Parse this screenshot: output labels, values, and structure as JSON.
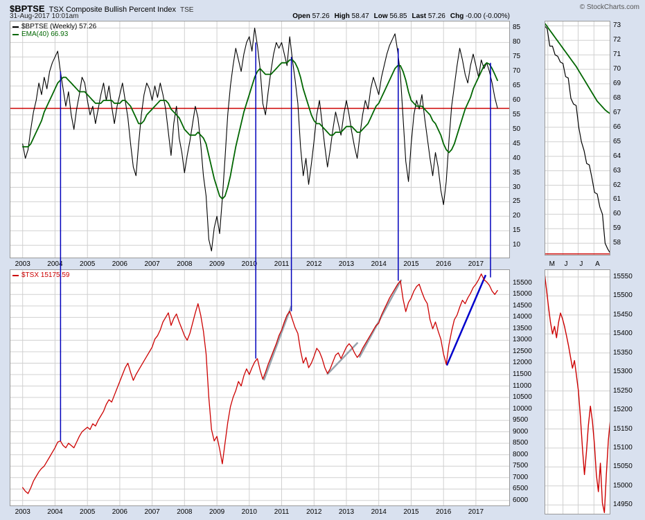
{
  "page": {
    "background": "#d9e1ef",
    "grid_color": "#d0d0d0",
    "border_color": "#999999"
  },
  "header": {
    "symbol": "$BPTSE",
    "title": "TSX Composite Bullish Percent Index",
    "exchange": "TSE",
    "copyright": "© StockCharts.com",
    "timestamp": "31-Aug-2017 10:01am",
    "quote": [
      {
        "label": "Open",
        "value": "57.26"
      },
      {
        "label": "High",
        "value": "58.47"
      },
      {
        "label": "Low",
        "value": "56.85"
      },
      {
        "label": "Last",
        "value": "57.26"
      },
      {
        "label": "Chg",
        "value": "-0.00 (-0.00%)"
      }
    ]
  },
  "annotations": {
    "color": "#0000bb",
    "vertical_lines": [
      {
        "year": 2004.17,
        "bp_value": 70,
        "tsx_value": 8600
      },
      {
        "year": 2010.2,
        "bp_value": 80,
        "tsx_value": 12200
      },
      {
        "year": 2011.3,
        "bp_value": 75,
        "tsx_value": 14270
      },
      {
        "year": 2014.6,
        "bp_value": 78,
        "tsx_value": 15600
      },
      {
        "year": 2017.45,
        "bp_value": 73,
        "tsx_value": 15750
      }
    ]
  },
  "chart_data": [
    {
      "id": "bp",
      "name": "TSX Composite Bullish Percent Index, weekly 2003-2017",
      "type": "line",
      "xlim": [
        2002.6,
        2018.05
      ],
      "ylim": [
        5.5,
        87.5
      ],
      "xgrid": [
        2003,
        2004,
        2005,
        2006,
        2007,
        2008,
        2009,
        2010,
        2011,
        2012,
        2013,
        2014,
        2015,
        2016,
        2017
      ],
      "xtick_positions": [
        2003,
        2004,
        2005,
        2006,
        2007,
        2008,
        2009,
        2010,
        2011,
        2012,
        2013,
        2014,
        2015,
        2016,
        2017
      ],
      "xtick_labels": [
        "2003",
        "2004",
        "2005",
        "2006",
        "2007",
        "2008",
        "2009",
        "2010",
        "2011",
        "2012",
        "2013",
        "2014",
        "2015",
        "2016",
        "2017"
      ],
      "xlabel_align": "center",
      "yticks": [
        85,
        80,
        75,
        70,
        65,
        60,
        55,
        50,
        45,
        40,
        35,
        30,
        25,
        20,
        15,
        10
      ],
      "hline": {
        "value": 57.26,
        "color": "#cc0000"
      },
      "legend": [
        {
          "label": "$BPTSE (Weekly) 57.26",
          "color": "#000000"
        },
        {
          "label": "EMA(40) 66.93",
          "color": "#006600"
        }
      ],
      "series": [
        {
          "name": "$BPTSE (Weekly)",
          "color": "#000000",
          "width": 1.1,
          "x_start": 2003.0,
          "x_step": 0.083333,
          "values": [
            45,
            40,
            43,
            50,
            56,
            60,
            66,
            62,
            68,
            64,
            70,
            73,
            75,
            77,
            70,
            64,
            58,
            63,
            55,
            50,
            57,
            62,
            68,
            66,
            60,
            55,
            58,
            52,
            57,
            62,
            66,
            60,
            65,
            58,
            52,
            58,
            62,
            66,
            60,
            54,
            45,
            37,
            34,
            45,
            55,
            62,
            66,
            64,
            60,
            65,
            61,
            66,
            62,
            57,
            49,
            41,
            52,
            58,
            47,
            42,
            35,
            41,
            46,
            52,
            58,
            54,
            45,
            34,
            27,
            12,
            8,
            16,
            20,
            14,
            26,
            40,
            55,
            65,
            72,
            78,
            74,
            70,
            76,
            80,
            82,
            77,
            85,
            79,
            71,
            59,
            55,
            63,
            70,
            76,
            80,
            78,
            80,
            76,
            72,
            82,
            74,
            67,
            59,
            44,
            34,
            40,
            31,
            38,
            46,
            55,
            60,
            52,
            44,
            37,
            43,
            50,
            56,
            52,
            48,
            55,
            60,
            55,
            49,
            44,
            40,
            48,
            55,
            60,
            57,
            64,
            68,
            65,
            62,
            68,
            72,
            76,
            79,
            81,
            83,
            77,
            69,
            54,
            39,
            32,
            45,
            55,
            60,
            57,
            62,
            54,
            47,
            40,
            34,
            42,
            37,
            29,
            24,
            32,
            46,
            58,
            65,
            72,
            78,
            74,
            69,
            66,
            72,
            76,
            72,
            68,
            74,
            71,
            73,
            70,
            66,
            61,
            57.3
          ]
        },
        {
          "name": "EMA(40)",
          "color": "#006600",
          "width": 1.8,
          "x_start": 2003.0,
          "x_step": 0.083333,
          "values": [
            44,
            44,
            44,
            45,
            47,
            49,
            51,
            53,
            56,
            58,
            60,
            62,
            64,
            66,
            67,
            68,
            68,
            67,
            66,
            65,
            64,
            63,
            63,
            63,
            62,
            61,
            60,
            59,
            59,
            59,
            60,
            60,
            60,
            60,
            59,
            59,
            59,
            60,
            60,
            59,
            58,
            56,
            54,
            52,
            52,
            53,
            55,
            56,
            57,
            58,
            59,
            60,
            60,
            60,
            59,
            57,
            56,
            55,
            54,
            52,
            50,
            49,
            48,
            48,
            48,
            49,
            48,
            47,
            45,
            41,
            37,
            33,
            30,
            27,
            26,
            27,
            30,
            34,
            39,
            44,
            48,
            52,
            56,
            59,
            62,
            65,
            68,
            70,
            71,
            70,
            69,
            69,
            69,
            70,
            71,
            72,
            73,
            73,
            73,
            74,
            74,
            73,
            71,
            68,
            64,
            61,
            58,
            55,
            53,
            52,
            52,
            51,
            50,
            49,
            48,
            48,
            49,
            49,
            49,
            50,
            51,
            51,
            51,
            50,
            49,
            49,
            50,
            51,
            52,
            54,
            56,
            58,
            59,
            61,
            63,
            65,
            67,
            69,
            71,
            72,
            72,
            70,
            67,
            63,
            60,
            59,
            58,
            58,
            58,
            57,
            56,
            55,
            53,
            52,
            50,
            48,
            45,
            43,
            42,
            43,
            45,
            48,
            51,
            54,
            57,
            59,
            61,
            64,
            66,
            68,
            70,
            72,
            73,
            72.5,
            71,
            69,
            66.9
          ]
        }
      ]
    },
    {
      "id": "tsx",
      "name": "TSX Composite Index price, 2003-2017",
      "type": "line",
      "xlim": [
        2002.6,
        2018.05
      ],
      "ylim": [
        5750,
        16100
      ],
      "xgrid": [
        2003,
        2004,
        2005,
        2006,
        2007,
        2008,
        2009,
        2010,
        2011,
        2012,
        2013,
        2014,
        2015,
        2016,
        2017
      ],
      "xtick_positions": [
        2003,
        2004,
        2005,
        2006,
        2007,
        2008,
        2009,
        2010,
        2011,
        2012,
        2013,
        2014,
        2015,
        2016,
        2017
      ],
      "xtick_labels": [
        "2003",
        "2004",
        "2005",
        "2006",
        "2007",
        "2008",
        "2009",
        "2010",
        "2011",
        "2012",
        "2013",
        "2014",
        "2015",
        "2016",
        "2017"
      ],
      "xlabel_align": "center",
      "yticks": [
        15500,
        15000,
        14500,
        14000,
        13500,
        13000,
        12500,
        12000,
        11500,
        11000,
        10500,
        10000,
        9500,
        9000,
        8500,
        8000,
        7500,
        7000,
        6500,
        6000
      ],
      "legend": [
        {
          "label": "$TSX 15175.59",
          "color": "#cc0000"
        }
      ],
      "trendlines": [
        {
          "x1": 2010.45,
          "y1": 11250,
          "x2": 2011.3,
          "y2": 14500,
          "color": "#97a3ad",
          "width": 2.5
        },
        {
          "x1": 2012.4,
          "y1": 11500,
          "x2": 2013.35,
          "y2": 12900,
          "color": "#97a3ad",
          "width": 2.5
        },
        {
          "x1": 2013.4,
          "y1": 12250,
          "x2": 2014.7,
          "y2": 15650,
          "color": "#97a3ad",
          "width": 2.5
        },
        {
          "x1": 2016.1,
          "y1": 11900,
          "x2": 2017.3,
          "y2": 15850,
          "color": "#0000cc",
          "width": 2.5
        }
      ],
      "series": [
        {
          "name": "$TSX",
          "color": "#cc0000",
          "width": 1.3,
          "x_start": 2003.0,
          "x_step": 0.083333,
          "values": [
            6560,
            6400,
            6300,
            6550,
            6850,
            7050,
            7250,
            7400,
            7500,
            7700,
            7900,
            8100,
            8300,
            8550,
            8600,
            8400,
            8300,
            8500,
            8400,
            8300,
            8550,
            8800,
            9000,
            9100,
            9200,
            9100,
            9350,
            9250,
            9500,
            9700,
            9900,
            10200,
            10400,
            10300,
            10600,
            10900,
            11200,
            11500,
            11800,
            12000,
            11600,
            11250,
            11500,
            11700,
            11900,
            12100,
            12300,
            12500,
            12700,
            13050,
            13200,
            13450,
            13800,
            14000,
            14200,
            13650,
            13950,
            14150,
            13800,
            13500,
            13200,
            13000,
            13300,
            13750,
            14200,
            14600,
            14100,
            13400,
            12400,
            10500,
            9100,
            8600,
            8800,
            8250,
            7600,
            8500,
            9400,
            10100,
            10500,
            10800,
            11200,
            11000,
            11450,
            11750,
            11500,
            11800,
            12050,
            12200,
            11700,
            11300,
            11600,
            11950,
            12250,
            12550,
            12850,
            13200,
            13450,
            13800,
            14100,
            14270,
            13900,
            13550,
            13300,
            12550,
            12000,
            12250,
            11800,
            12000,
            12300,
            12650,
            12500,
            12200,
            11800,
            11550,
            11750,
            12050,
            12350,
            12450,
            12200,
            12450,
            12700,
            12850,
            12700,
            12450,
            12250,
            12400,
            12650,
            12850,
            13050,
            13250,
            13450,
            13650,
            13750,
            14100,
            14350,
            14600,
            14850,
            15050,
            15250,
            15450,
            15600,
            14800,
            14250,
            14650,
            14850,
            15150,
            15350,
            15450,
            15100,
            14800,
            14600,
            13900,
            13500,
            13800,
            13400,
            13050,
            12400,
            11950,
            12800,
            13400,
            13900,
            14100,
            14450,
            14750,
            14600,
            14850,
            15050,
            15300,
            15450,
            15650,
            15900,
            15650,
            15550,
            15400,
            15150,
            15000,
            15175.6
          ]
        }
      ]
    },
    {
      "id": "bpz",
      "name": "BPTSE zoom, April-August 2017",
      "type": "line",
      "xlim": [
        0,
        1
      ],
      "ylim": [
        57.15,
        73.35
      ],
      "xgrid": [
        0.05,
        0.28,
        0.51,
        0.75
      ],
      "xtick_positions": [
        0.07,
        0.3,
        0.53,
        0.77
      ],
      "xtick_labels": [
        "M",
        "J",
        "J",
        "A"
      ],
      "xlabel_align": "left",
      "yticks": [
        73,
        72,
        71,
        70,
        69,
        68,
        67,
        66,
        65,
        64,
        63,
        62,
        61,
        60,
        59,
        58
      ],
      "hline": {
        "value": 57.26,
        "color": "#cc0000"
      },
      "series": [
        {
          "name": "$BPTSE (Weekly)",
          "color": "#000000",
          "width": 1.2,
          "x_start": 0,
          "x_step": 0.04,
          "values": [
            73,
            72.8,
            71.6,
            71.6,
            71,
            70.9,
            70.5,
            70.4,
            69.5,
            69.4,
            68,
            67.6,
            67.5,
            66,
            65,
            64.4,
            63.5,
            63.4,
            62.5,
            61.5,
            61.4,
            60.5,
            60,
            58,
            57.6,
            57.3
          ]
        },
        {
          "name": "EMA(40)",
          "color": "#006600",
          "width": 1.8,
          "x_start": 0,
          "x_step": 0.04,
          "values": [
            73.2,
            72.95,
            72.7,
            72.45,
            72.2,
            71.95,
            71.7,
            71.45,
            71.2,
            70.95,
            70.7,
            70.45,
            70.2,
            69.9,
            69.6,
            69.3,
            69,
            68.7,
            68.4,
            68.1,
            67.8,
            67.6,
            67.4,
            67.2,
            67.05,
            66.93
          ]
        }
      ]
    },
    {
      "id": "tsxz",
      "name": "TSX zoom, April-August 2017",
      "type": "line",
      "xlim": [
        0,
        1
      ],
      "ylim": [
        14925,
        15570
      ],
      "xgrid": [
        0.05,
        0.28,
        0.51,
        0.75
      ],
      "yticks": [
        15550,
        15500,
        15450,
        15400,
        15350,
        15300,
        15250,
        15200,
        15150,
        15100,
        15050,
        15000,
        14950
      ],
      "series": [
        {
          "name": "$TSX",
          "color": "#cc0000",
          "width": 1.4,
          "x_start": 0,
          "x_step": 0.030303,
          "values": [
            15560,
            15515,
            15470,
            15430,
            15400,
            15420,
            15390,
            15430,
            15455,
            15440,
            15420,
            15395,
            15370,
            15340,
            15310,
            15330,
            15290,
            15250,
            15180,
            15100,
            15030,
            15090,
            15160,
            15210,
            15170,
            15110,
            15030,
            14985,
            15060,
            14955,
            14930,
            15030,
            15120,
            15175.6
          ]
        }
      ]
    }
  ]
}
